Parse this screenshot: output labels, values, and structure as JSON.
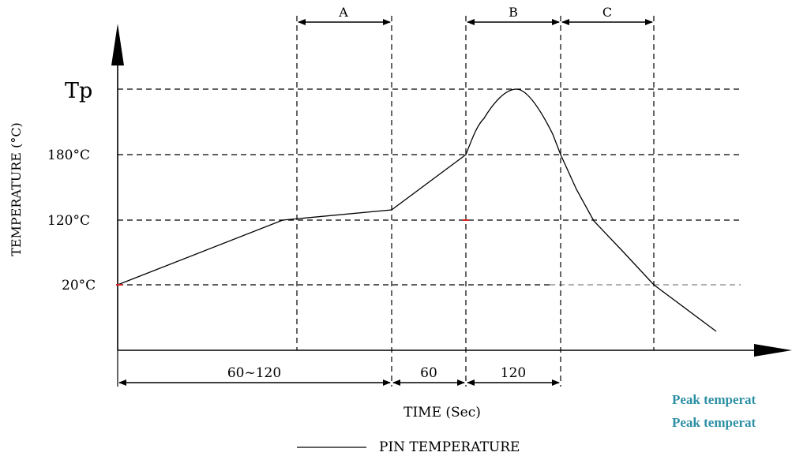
{
  "diagram": {
    "y_axis_label": "TEMPERATURE (°C)",
    "x_axis_label": "TIME (Sec)",
    "legend_label": "PIN TEMPERATURE",
    "y_tick_labels": [
      "Tp",
      "180°C",
      "120°C",
      "20°C"
    ],
    "phase_labels": [
      "A",
      "B",
      "C"
    ],
    "interval_labels": [
      "60~120",
      "60",
      "120"
    ],
    "line_color": "#000000",
    "dashed_reference_color": "#999999"
  },
  "side_notes": [
    "Peak temperat",
    "Peak temperat"
  ],
  "colors": {
    "note_text": "#2b8fa3",
    "background": "#ffffff"
  }
}
